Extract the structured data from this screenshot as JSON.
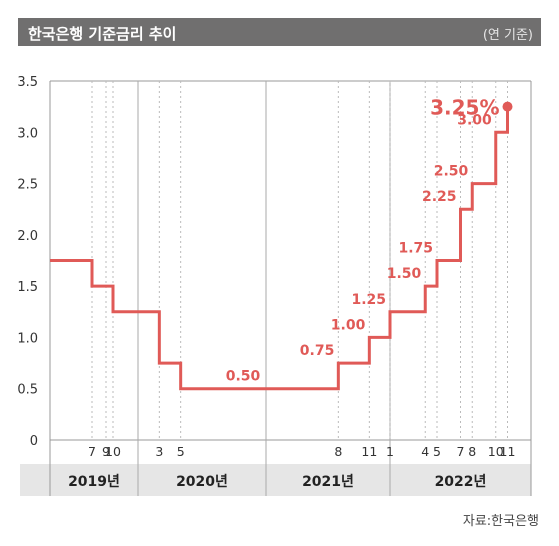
{
  "header": {
    "title": "한국은행 기준금리 추이",
    "unit": "(연 기준)"
  },
  "source": "자료:한국은행",
  "colors": {
    "line": "#e05a57",
    "title_bar": "#706f6f",
    "year_band": "#e6e6e6",
    "axis_text": "#333333"
  },
  "chart_data": {
    "type": "line",
    "step": true,
    "ylim": [
      0,
      3.5
    ],
    "yticks": [
      "0",
      "0.5",
      "1.0",
      "1.5",
      "2.0",
      "2.5",
      "3.0",
      "3.5"
    ],
    "grid": "vertical year dividers and dotted month guides",
    "years": [
      "2019년",
      "2020년",
      "2021년",
      "2022년"
    ],
    "month_ticks": [
      {
        "year": 2019,
        "month": 7,
        "label": "7"
      },
      {
        "year": 2019,
        "month": 9,
        "label": "9"
      },
      {
        "year": 2019,
        "month": 10,
        "label": "10"
      },
      {
        "year": 2020,
        "month": 3,
        "label": "3"
      },
      {
        "year": 2020,
        "month": 5,
        "label": "5"
      },
      {
        "year": 2021,
        "month": 8,
        "label": "8"
      },
      {
        "year": 2021,
        "month": 11,
        "label": "11"
      },
      {
        "year": 2022,
        "month": 1,
        "label": "1"
      },
      {
        "year": 2022,
        "month": 4,
        "label": "4"
      },
      {
        "year": 2022,
        "month": 5,
        "label": "5"
      },
      {
        "year": 2022,
        "month": 7,
        "label": "7"
      },
      {
        "year": 2022,
        "month": 8,
        "label": "8"
      },
      {
        "year": 2022,
        "month": 10,
        "label": "10"
      },
      {
        "year": 2022,
        "month": 11,
        "label": "11"
      }
    ],
    "series": [
      {
        "values": [
          {
            "date": "2019-01",
            "rate": 1.75
          },
          {
            "date": "2019-07",
            "rate": 1.5
          },
          {
            "date": "2019-10",
            "rate": 1.25
          },
          {
            "date": "2020-03",
            "rate": 0.75
          },
          {
            "date": "2020-05",
            "rate": 0.5
          },
          {
            "date": "2021-08",
            "rate": 0.75
          },
          {
            "date": "2021-11",
            "rate": 1.0
          },
          {
            "date": "2022-01",
            "rate": 1.25
          },
          {
            "date": "2022-04",
            "rate": 1.5
          },
          {
            "date": "2022-05",
            "rate": 1.75
          },
          {
            "date": "2022-07",
            "rate": 2.25
          },
          {
            "date": "2022-08",
            "rate": 2.5
          },
          {
            "date": "2022-10",
            "rate": 3.0
          },
          {
            "date": "2022-11",
            "rate": 3.25
          }
        ]
      }
    ],
    "data_labels": [
      {
        "text": "0.50",
        "date": "2020-05",
        "rate": 0.5
      },
      {
        "text": "0.75",
        "date": "2021-08",
        "rate": 0.75
      },
      {
        "text": "1.00",
        "date": "2021-11",
        "rate": 1.0
      },
      {
        "text": "1.25",
        "date": "2022-01",
        "rate": 1.25
      },
      {
        "text": "1.50",
        "date": "2022-04",
        "rate": 1.5
      },
      {
        "text": "1.75",
        "date": "2022-05",
        "rate": 1.75
      },
      {
        "text": "2.25",
        "date": "2022-07",
        "rate": 2.25
      },
      {
        "text": "2.50",
        "date": "2022-08",
        "rate": 2.5
      },
      {
        "text": "3.00",
        "date": "2022-10",
        "rate": 3.0
      },
      {
        "text": "3.25%",
        "date": "2022-11",
        "rate": 3.25,
        "highlight": true
      }
    ]
  }
}
